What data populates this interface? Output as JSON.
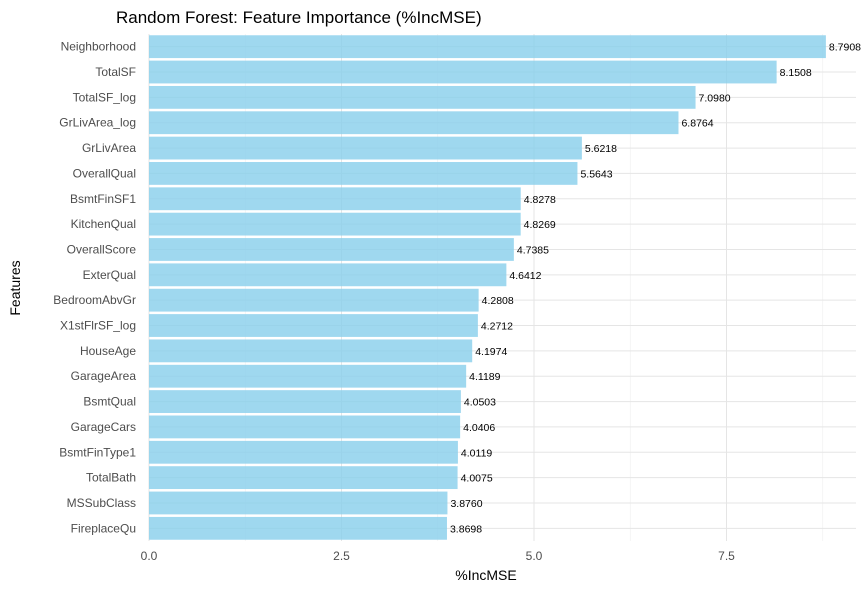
{
  "chart_data": {
    "type": "bar",
    "orientation": "horizontal",
    "title": "Random Forest: Feature Importance (%IncMSE)",
    "xlabel": "%IncMSE",
    "ylabel": "Features",
    "xlim": [
      0,
      8.8
    ],
    "x_ticks": [
      "0.0",
      "2.5",
      "5.0",
      "7.5"
    ],
    "grid": true,
    "legend": "none",
    "bar_color": "#87CEEB",
    "categories": [
      "Neighborhood",
      "TotalSF",
      "TotalSF_log",
      "GrLivArea_log",
      "GrLivArea",
      "OverallQual",
      "BsmtFinSF1",
      "KitchenQual",
      "OverallScore",
      "ExterQual",
      "BedroomAbvGr",
      "X1stFlrSF_log",
      "HouseAge",
      "GarageArea",
      "BsmtQual",
      "GarageCars",
      "BsmtFinType1",
      "TotalBath",
      "MSSubClass",
      "FireplaceQu"
    ],
    "values": [
      8.7908,
      8.1508,
      7.098,
      6.8764,
      5.6218,
      5.5643,
      4.8278,
      4.8269,
      4.7385,
      4.6412,
      4.2808,
      4.2712,
      4.1974,
      4.1189,
      4.0503,
      4.0406,
      4.0119,
      4.0075,
      3.876,
      3.8698
    ],
    "value_labels": [
      "8.7908",
      "8.1508",
      "7.0980",
      "6.8764",
      "5.6218",
      "5.5643",
      "4.8278",
      "4.8269",
      "4.7385",
      "4.6412",
      "4.2808",
      "4.2712",
      "4.1974",
      "4.1189",
      "4.0503",
      "4.0406",
      "4.0119",
      "4.0075",
      "3.8760",
      "3.8698"
    ]
  }
}
